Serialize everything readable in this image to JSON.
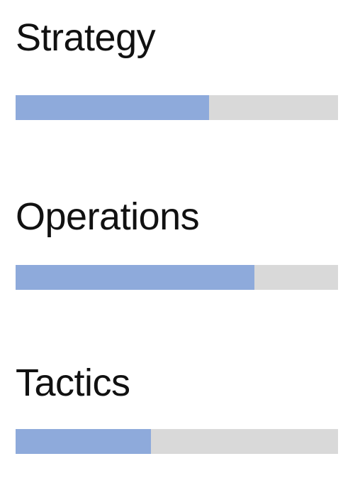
{
  "colors": {
    "fill": "#8eaadb",
    "track": "#d9d9d9",
    "text": "#111111",
    "background": "#ffffff"
  },
  "chart_data": {
    "type": "bar",
    "categories": [
      "Strategy",
      "Operations",
      "Tactics"
    ],
    "values": [
      60,
      74,
      42
    ],
    "ylim": [
      0,
      100
    ],
    "title": "",
    "xlabel": "",
    "ylabel": ""
  }
}
